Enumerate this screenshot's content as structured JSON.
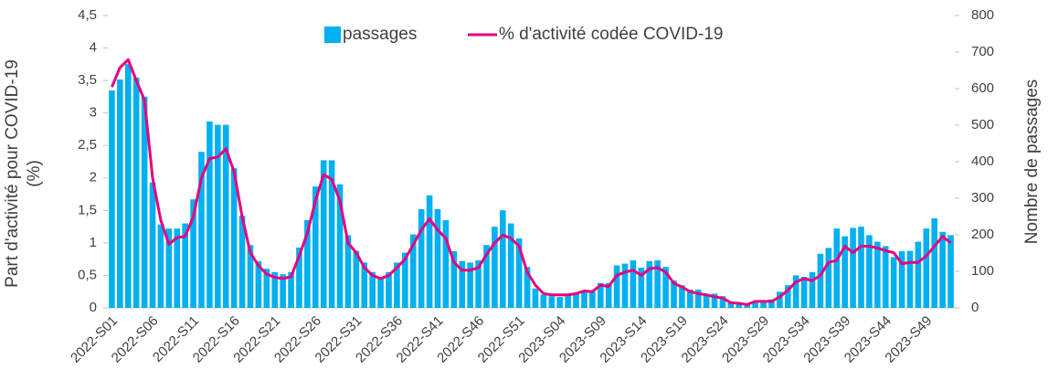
{
  "chart_data": {
    "type": "bar_line",
    "ylabel": [
      "Part d'activité pour COVID-19",
      "(%)"
    ],
    "y2label": "Nombre de passages",
    "categories": [
      "2022-S01",
      null,
      null,
      null,
      null,
      "2022-S06",
      null,
      null,
      null,
      null,
      "2022-S11",
      null,
      null,
      null,
      null,
      "2022-S16",
      null,
      null,
      null,
      null,
      "2022-S21",
      null,
      null,
      null,
      null,
      "2022-S26",
      null,
      null,
      null,
      null,
      "2022-S31",
      null,
      null,
      null,
      null,
      "2022-S36",
      null,
      null,
      null,
      null,
      "2022-S41",
      null,
      null,
      null,
      null,
      "2022-S46",
      null,
      null,
      null,
      null,
      "2022-S51",
      null,
      null,
      null,
      null,
      "2023-S04",
      null,
      null,
      null,
      null,
      "2023-S09",
      null,
      null,
      null,
      null,
      "2023-S14",
      null,
      null,
      null,
      null,
      "2023-S19",
      null,
      null,
      null,
      null,
      "2023-S24",
      null,
      null,
      null,
      null,
      "2023-S29",
      null,
      null,
      null,
      null,
      "2023-S34",
      null,
      null,
      null,
      null,
      "2023-S39",
      null,
      null,
      null,
      null,
      "2023-S44",
      null,
      null,
      null,
      null,
      "2023-S49",
      null,
      null,
      null
    ],
    "series": [
      {
        "name": "passages",
        "color": "#00b0f0",
        "axis": "y2",
        "values": [
          595,
          625,
          667,
          630,
          578,
          343,
          228,
          217,
          217,
          231,
          297,
          427,
          510,
          501,
          501,
          382,
          252,
          172,
          128,
          107,
          98,
          92,
          98,
          165,
          240,
          332,
          404,
          404,
          338,
          199,
          156,
          124,
          98,
          84,
          98,
          124,
          151,
          201,
          270,
          308,
          270,
          240,
          155,
          128,
          124,
          130,
          172,
          222,
          267,
          231,
          190,
          112,
          53,
          36,
          32,
          30,
          36,
          39,
          44,
          44,
          68,
          68,
          116,
          121,
          130,
          110,
          128,
          130,
          112,
          75,
          62,
          50,
          50,
          39,
          39,
          32,
          18,
          12,
          12,
          18,
          21,
          23,
          44,
          62,
          89,
          85,
          98,
          148,
          164,
          217,
          196,
          219,
          222,
          199,
          181,
          169,
          139,
          155,
          156,
          181,
          217,
          245,
          208,
          199
        ]
      },
      {
        "name": "% d'activité codée COVID-19",
        "color": "#e6007e",
        "values": [
          3.4,
          3.7,
          3.82,
          3.5,
          3.2,
          2.0,
          1.35,
          0.98,
          1.08,
          1.1,
          1.4,
          2.0,
          2.3,
          2.32,
          2.45,
          2.1,
          1.4,
          0.85,
          0.65,
          0.52,
          0.47,
          0.45,
          0.48,
          0.8,
          1.15,
          1.65,
          2.05,
          1.98,
          1.65,
          1.0,
          0.85,
          0.62,
          0.5,
          0.45,
          0.5,
          0.62,
          0.75,
          0.97,
          1.2,
          1.37,
          1.2,
          1.07,
          0.7,
          0.58,
          0.58,
          0.62,
          0.82,
          1.0,
          1.12,
          1.07,
          0.95,
          0.55,
          0.35,
          0.22,
          0.2,
          0.2,
          0.2,
          0.22,
          0.26,
          0.25,
          0.35,
          0.33,
          0.5,
          0.55,
          0.58,
          0.5,
          0.6,
          0.62,
          0.55,
          0.38,
          0.32,
          0.25,
          0.22,
          0.2,
          0.17,
          0.15,
          0.08,
          0.07,
          0.05,
          0.1,
          0.1,
          0.1,
          0.17,
          0.27,
          0.4,
          0.45,
          0.42,
          0.5,
          0.7,
          0.73,
          0.95,
          0.85,
          0.95,
          0.95,
          0.92,
          0.88,
          0.85,
          0.68,
          0.7,
          0.7,
          0.8,
          0.95,
          1.1,
          1.0
        ]
      }
    ],
    "ylim": [
      0,
      4.5
    ],
    "yticks": [
      0,
      {
        "value": 0.5,
        "label": "0,5"
      },
      1,
      {
        "value": 1.5,
        "label": "1,5"
      },
      2,
      {
        "value": 2.5,
        "label": "2,5"
      },
      3,
      {
        "value": 3.5,
        "label": "3,5"
      },
      4,
      {
        "value": 4.5,
        "label": "4,5"
      }
    ],
    "y2lim": [
      0,
      800
    ],
    "y2ticks": [
      0,
      100,
      200,
      300,
      400,
      500,
      600,
      700,
      800
    ]
  }
}
